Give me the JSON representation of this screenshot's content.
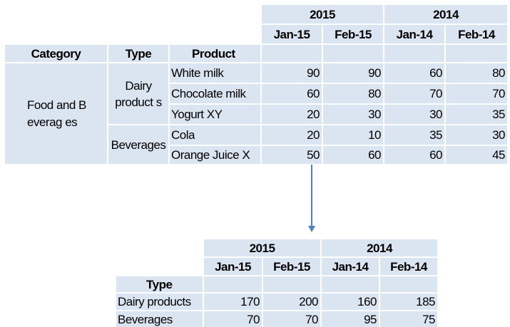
{
  "top_table": {
    "years": [
      "2015",
      "2014"
    ],
    "months": [
      "Jan-15",
      "Feb-15",
      "Jan-14",
      "Feb-14"
    ],
    "headers": [
      "Category",
      "Type",
      "Product"
    ],
    "category": "Food and Beverag es",
    "types": [
      "Dairy product s",
      "Beverages"
    ],
    "rows": [
      {
        "product": "White milk",
        "v": [
          "90",
          "90",
          "60",
          "80"
        ]
      },
      {
        "product": "Chocolate milk",
        "v": [
          "60",
          "80",
          "70",
          "70"
        ]
      },
      {
        "product": "Yogurt XY",
        "v": [
          "20",
          "30",
          "30",
          "35"
        ]
      },
      {
        "product": "Cola",
        "v": [
          "20",
          "10",
          "35",
          "30"
        ]
      },
      {
        "product": "Orange Juice X",
        "v": [
          "50",
          "60",
          "60",
          "45"
        ]
      }
    ]
  },
  "bottom_table": {
    "years": [
      "2015",
      "2014"
    ],
    "months": [
      "Jan-15",
      "Feb-15",
      "Jan-14",
      "Feb-14"
    ],
    "header": "Type",
    "rows": [
      {
        "type": "Dairy products",
        "v": [
          "170",
          "200",
          "160",
          "185"
        ]
      },
      {
        "type": "Beverages",
        "v": [
          "70",
          "70",
          "95",
          "75"
        ]
      }
    ]
  },
  "colors": {
    "cell_bg": "#dbe5f1",
    "arrow": "#4f81bd"
  }
}
